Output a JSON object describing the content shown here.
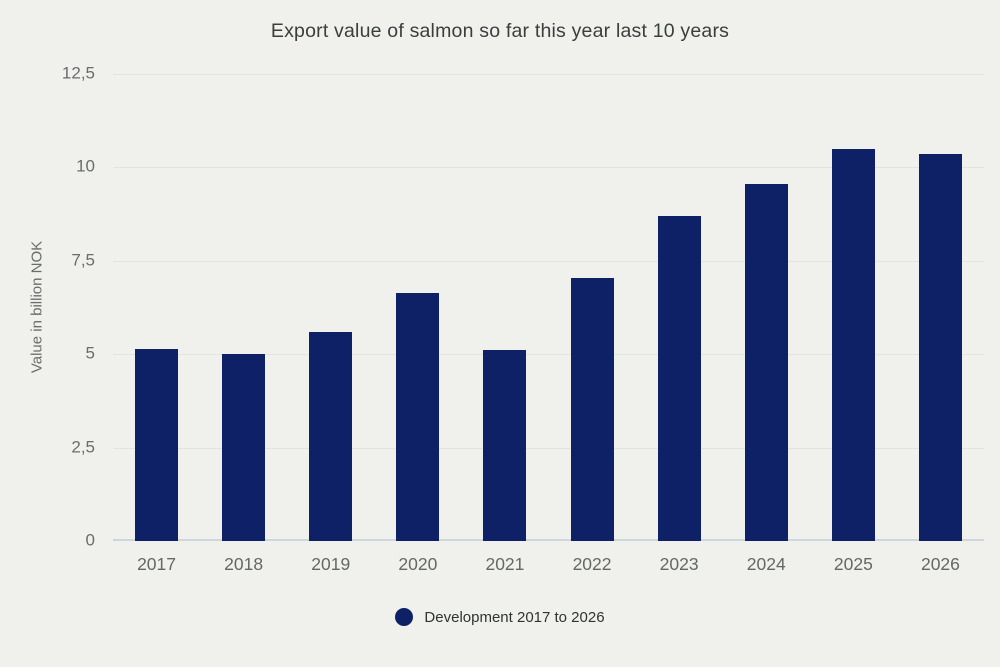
{
  "chart_data": {
    "type": "bar",
    "title": "Export value of salmon so far this year last 10 years",
    "ylabel": "Value in billion NOK",
    "xlabel": "",
    "categories": [
      "2017",
      "2018",
      "2019",
      "2020",
      "2021",
      "2022",
      "2023",
      "2024",
      "2025",
      "2026"
    ],
    "values": [
      5.15,
      5.0,
      5.6,
      6.65,
      5.1,
      7.05,
      8.7,
      9.55,
      10.5,
      10.35
    ],
    "ylim": [
      0,
      12.5
    ],
    "yticks": [
      {
        "value": 0,
        "label": "0"
      },
      {
        "value": 2.5,
        "label": "2,5"
      },
      {
        "value": 5,
        "label": "5"
      },
      {
        "value": 7.5,
        "label": "7,5"
      },
      {
        "value": 10,
        "label": "10"
      },
      {
        "value": 12.5,
        "label": "12,5"
      }
    ],
    "grid": "horizontal-only",
    "legend": {
      "label": "Development 2017 to 2026",
      "position": "bottom-center",
      "marker": "circle"
    },
    "colors": {
      "bar": "#0e2166",
      "background": "#f0f1ec",
      "gridline": "#e2e4df",
      "baseline": "#ccd6dd",
      "tick_text": "#696d6b",
      "title_text": "#3a3e3c"
    }
  }
}
